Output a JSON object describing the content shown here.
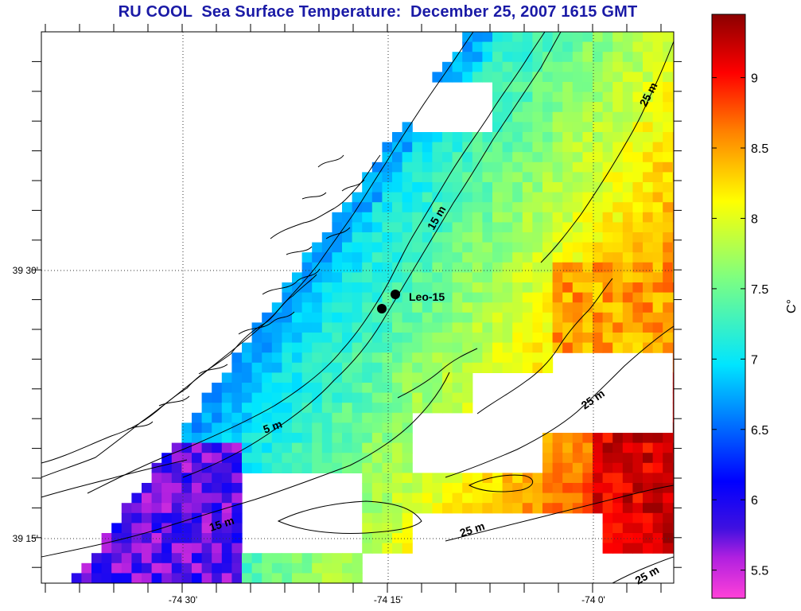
{
  "title": "RU COOL  Sea Surface Temperature:  December 25, 2007 1615 GMT",
  "map": {
    "lat_ticks": [
      "39 30'",
      "39 15'"
    ],
    "lon_ticks": [
      "-74 30'",
      "-74 15'",
      "-74 0'"
    ],
    "station": {
      "label": "Leo-15"
    },
    "depth_labels": [
      "25 m",
      "15 m",
      "5 m",
      "25 m",
      "15 m",
      "25 m",
      "25 m"
    ],
    "land_color": "#ffffff",
    "contour_color": "#000000"
  },
  "colorbar": {
    "unit": "C°",
    "ticks": [
      "9",
      "8.5",
      "8",
      "7.5",
      "7",
      "6.5",
      "6",
      "5.5"
    ],
    "range": [
      5.3,
      9.45
    ],
    "colors": [
      "#ff40d8",
      "#3f10e0",
      "#0000ff",
      "#00e5ff",
      "#7fff7f",
      "#ffff00",
      "#ff8000",
      "#ff0000",
      "#8b0000"
    ]
  }
}
